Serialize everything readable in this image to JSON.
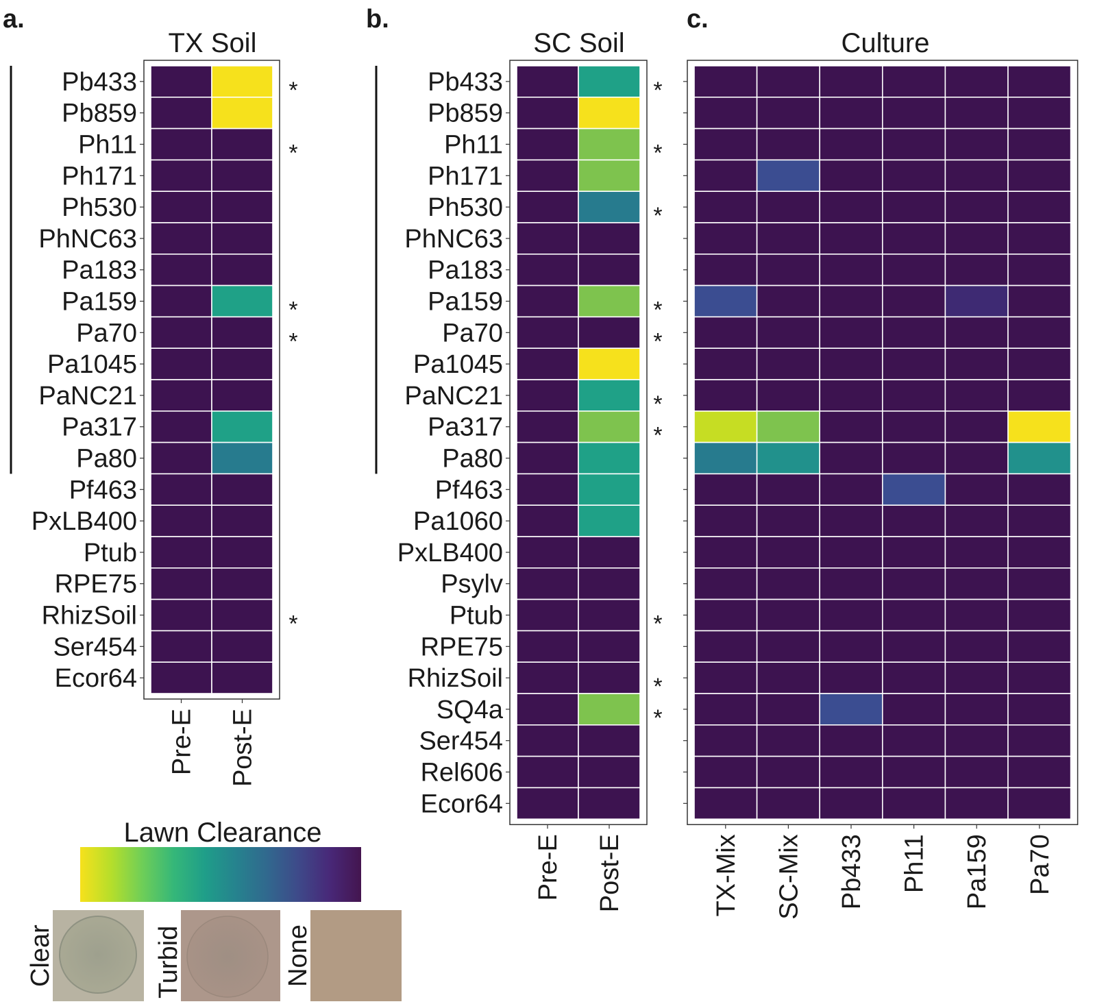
{
  "colors": {
    "v0": "#3d1350",
    "v1": "#3b4d91",
    "v1b": "#3e2a73",
    "v2": "#277b8e",
    "v3": "#1fa187",
    "v4": "#7ec34e",
    "v5": "#f6e11c",
    "v4b": "#c6dd23",
    "v3b": "#21918c"
  },
  "legend": {
    "title": "Lawn Clearance",
    "gradient": [
      "#f6e11c",
      "#b5de2b",
      "#6ece58",
      "#35b779",
      "#1f9e89",
      "#26828e",
      "#31688e",
      "#3e4989",
      "#482878",
      "#44154f"
    ],
    "swatches": [
      {
        "label": "Clear",
        "name": "clear"
      },
      {
        "label": "Turbid",
        "name": "turbid"
      },
      {
        "label": "None",
        "name": "none"
      }
    ]
  },
  "chart_data": [
    {
      "type": "heatmap",
      "panel": "a.",
      "title": "TX Soil",
      "columns": [
        "Pre-E",
        "Post-E"
      ],
      "rows": [
        "Pb433",
        "Pb859",
        "Ph11",
        "Ph171",
        "Ph530",
        "PhNC63",
        "Pa183",
        "Pa159",
        "Pa70",
        "Pa1045",
        "PaNC21",
        "Pa317",
        "Pa80",
        "Pf463",
        "PxLB400",
        "Ptub",
        "RPE75",
        "RhizSoil",
        "Ser454",
        "Ecor64"
      ],
      "values": [
        [
          "v0",
          "v5"
        ],
        [
          "v0",
          "v5"
        ],
        [
          "v0",
          "v0"
        ],
        [
          "v0",
          "v0"
        ],
        [
          "v0",
          "v0"
        ],
        [
          "v0",
          "v0"
        ],
        [
          "v0",
          "v0"
        ],
        [
          "v0",
          "v3"
        ],
        [
          "v0",
          "v0"
        ],
        [
          "v0",
          "v0"
        ],
        [
          "v0",
          "v0"
        ],
        [
          "v0",
          "v3"
        ],
        [
          "v0",
          "v2"
        ],
        [
          "v0",
          "v0"
        ],
        [
          "v0",
          "v0"
        ],
        [
          "v0",
          "v0"
        ],
        [
          "v0",
          "v0"
        ],
        [
          "v0",
          "v0"
        ],
        [
          "v0",
          "v0"
        ],
        [
          "v0",
          "v0"
        ]
      ],
      "stars": [
        0,
        2,
        7,
        8,
        17
      ],
      "star_text": "*",
      "bracket_rows": [
        0,
        12
      ]
    },
    {
      "type": "heatmap",
      "panel": "b.",
      "title": "SC Soil",
      "columns": [
        "Pre-E",
        "Post-E"
      ],
      "rows": [
        "Pb433",
        "Pb859",
        "Ph11",
        "Ph171",
        "Ph530",
        "PhNC63",
        "Pa183",
        "Pa159",
        "Pa70",
        "Pa1045",
        "PaNC21",
        "Pa317",
        "Pa80",
        "Pf463",
        "Pa1060",
        "PxLB400",
        "Psylv",
        "Ptub",
        "RPE75",
        "RhizSoil",
        "SQ4a",
        "Ser454",
        "Rel606",
        "Ecor64"
      ],
      "values": [
        [
          "v0",
          "v3"
        ],
        [
          "v0",
          "v5"
        ],
        [
          "v0",
          "v4"
        ],
        [
          "v0",
          "v4"
        ],
        [
          "v0",
          "v2"
        ],
        [
          "v0",
          "v0"
        ],
        [
          "v0",
          "v0"
        ],
        [
          "v0",
          "v4"
        ],
        [
          "v0",
          "v0"
        ],
        [
          "v0",
          "v5"
        ],
        [
          "v0",
          "v3"
        ],
        [
          "v0",
          "v4"
        ],
        [
          "v0",
          "v3"
        ],
        [
          "v0",
          "v3"
        ],
        [
          "v0",
          "v3"
        ],
        [
          "v0",
          "v0"
        ],
        [
          "v0",
          "v0"
        ],
        [
          "v0",
          "v0"
        ],
        [
          "v0",
          "v0"
        ],
        [
          "v0",
          "v0"
        ],
        [
          "v0",
          "v4"
        ],
        [
          "v0",
          "v0"
        ],
        [
          "v0",
          "v0"
        ],
        [
          "v0",
          "v0"
        ]
      ],
      "stars": [
        0,
        2,
        4,
        7,
        8,
        10,
        11,
        17,
        19,
        20
      ],
      "star_text": "*",
      "bracket_rows": [
        0,
        12
      ]
    },
    {
      "type": "heatmap",
      "panel": "c.",
      "title": "Culture",
      "columns": [
        "TX-Mix",
        "SC-Mix",
        "Pb433",
        "Ph11",
        "Pa159",
        "Pa70"
      ],
      "rows": [
        "Pb433",
        "Pb859",
        "Ph11",
        "Ph171",
        "Ph530",
        "PhNC63",
        "Pa183",
        "Pa159",
        "Pa70",
        "Pa1045",
        "PaNC21",
        "Pa317",
        "Pa80",
        "Pf463",
        "Pa1060",
        "PxLB400",
        "Psylv",
        "Ptub",
        "RPE75",
        "RhizSoil",
        "SQ4a",
        "Ser454",
        "Rel606",
        "Ecor64"
      ],
      "values": [
        [
          "v0",
          "v0",
          "v0",
          "v0",
          "v0",
          "v0"
        ],
        [
          "v0",
          "v0",
          "v0",
          "v0",
          "v0",
          "v0"
        ],
        [
          "v0",
          "v0",
          "v0",
          "v0",
          "v0",
          "v0"
        ],
        [
          "v0",
          "v1",
          "v0",
          "v0",
          "v0",
          "v0"
        ],
        [
          "v0",
          "v0",
          "v0",
          "v0",
          "v0",
          "v0"
        ],
        [
          "v0",
          "v0",
          "v0",
          "v0",
          "v0",
          "v0"
        ],
        [
          "v0",
          "v0",
          "v0",
          "v0",
          "v0",
          "v0"
        ],
        [
          "v1",
          "v0",
          "v0",
          "v0",
          "v1b",
          "v0"
        ],
        [
          "v0",
          "v0",
          "v0",
          "v0",
          "v0",
          "v0"
        ],
        [
          "v0",
          "v0",
          "v0",
          "v0",
          "v0",
          "v0"
        ],
        [
          "v0",
          "v0",
          "v0",
          "v0",
          "v0",
          "v0"
        ],
        [
          "v4b",
          "v4",
          "v0",
          "v0",
          "v0",
          "v5"
        ],
        [
          "v2",
          "v3b",
          "v0",
          "v0",
          "v0",
          "v3b"
        ],
        [
          "v0",
          "v0",
          "v0",
          "v1",
          "v0",
          "v0"
        ],
        [
          "v0",
          "v0",
          "v0",
          "v0",
          "v0",
          "v0"
        ],
        [
          "v0",
          "v0",
          "v0",
          "v0",
          "v0",
          "v0"
        ],
        [
          "v0",
          "v0",
          "v0",
          "v0",
          "v0",
          "v0"
        ],
        [
          "v0",
          "v0",
          "v0",
          "v0",
          "v0",
          "v0"
        ],
        [
          "v0",
          "v0",
          "v0",
          "v0",
          "v0",
          "v0"
        ],
        [
          "v0",
          "v0",
          "v0",
          "v0",
          "v0",
          "v0"
        ],
        [
          "v0",
          "v0",
          "v1",
          "v0",
          "v0",
          "v0"
        ],
        [
          "v0",
          "v0",
          "v0",
          "v0",
          "v0",
          "v0"
        ],
        [
          "v0",
          "v0",
          "v0",
          "v0",
          "v0",
          "v0"
        ],
        [
          "v0",
          "v0",
          "v0",
          "v0",
          "v0",
          "v0"
        ]
      ]
    }
  ]
}
